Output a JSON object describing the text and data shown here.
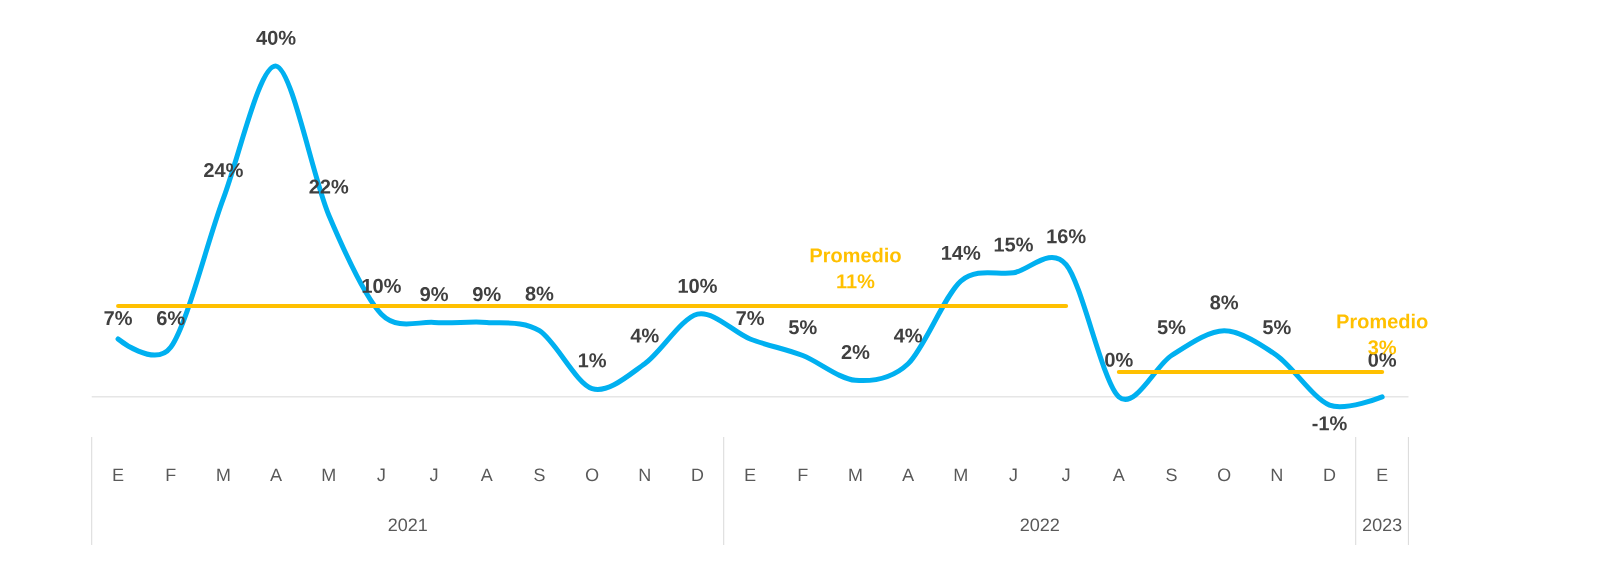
{
  "chart_data": {
    "type": "line",
    "categories": [
      "E",
      "F",
      "M",
      "A",
      "M",
      "J",
      "J",
      "A",
      "S",
      "O",
      "N",
      "D",
      "E",
      "F",
      "M",
      "A",
      "M",
      "J",
      "J",
      "A",
      "S",
      "O",
      "N",
      "D",
      "E"
    ],
    "series": [
      {
        "color": "#00b0f0",
        "values": [
          7,
          6,
          24,
          40,
          22,
          10,
          9,
          9,
          8,
          1,
          4,
          10,
          7,
          5,
          2,
          4,
          14,
          15,
          16,
          0,
          5,
          8,
          5,
          -1,
          0
        ],
        "value_labels": [
          "7%",
          "6%",
          "24%",
          "40%",
          "22%",
          "10%",
          "9%",
          "9%",
          "8%",
          "1%",
          "4%",
          "10%",
          "7%",
          "5%",
          "2%",
          "4%",
          "14%",
          "15%",
          "16%",
          "0%",
          "5%",
          "8%",
          "5%",
          "-1%",
          "0%"
        ]
      },
      {
        "name": "Promedio",
        "color": "#ffc000",
        "values": [
          11,
          11,
          11,
          11,
          11,
          11,
          11,
          11,
          11,
          11,
          11,
          11,
          11,
          11,
          11,
          11,
          11,
          11,
          11,
          null,
          null,
          null,
          null,
          null,
          null
        ],
        "value_labels": [
          null,
          null,
          null,
          null,
          null,
          null,
          null,
          null,
          null,
          null,
          null,
          null,
          null,
          null,
          "11%",
          null,
          null,
          null,
          null,
          null,
          null,
          null,
          null,
          null,
          null
        ]
      },
      {
        "name": "Promedio",
        "color": "#ffc000",
        "values": [
          null,
          null,
          null,
          null,
          null,
          null,
          null,
          null,
          null,
          null,
          null,
          null,
          null,
          null,
          null,
          null,
          null,
          null,
          null,
          3,
          3,
          3,
          3,
          3,
          3
        ],
        "value_labels": [
          null,
          null,
          null,
          null,
          null,
          null,
          null,
          null,
          null,
          null,
          null,
          null,
          null,
          null,
          null,
          null,
          null,
          null,
          null,
          null,
          null,
          null,
          null,
          null,
          "3%"
        ]
      }
    ],
    "tick_labels": "x",
    "annotations": [
      "2021",
      "2022",
      "2023"
    ]
  }
}
